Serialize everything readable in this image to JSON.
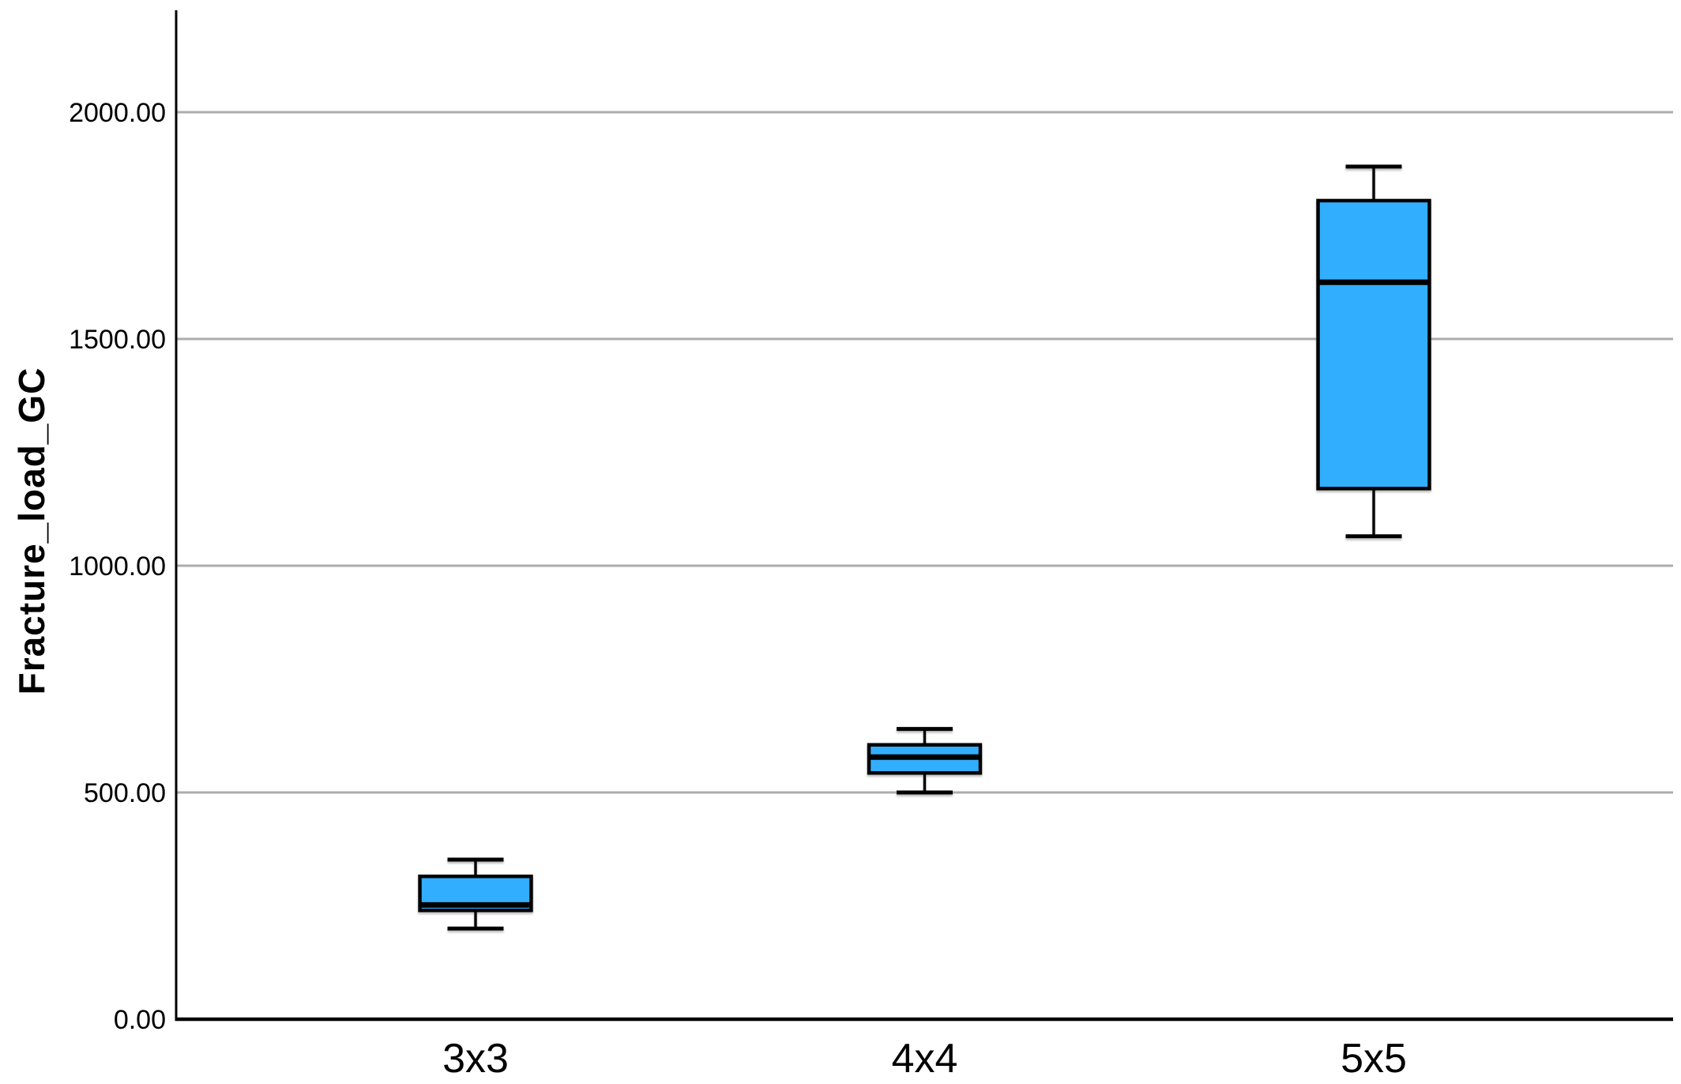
{
  "chart_data": {
    "type": "box",
    "title": "",
    "xlabel": "",
    "ylabel": "Fracture_load_GC",
    "categories": [
      "3x3",
      "4x4",
      "5x5"
    ],
    "series": [
      {
        "category": "3x3",
        "min": 200,
        "q1": 240,
        "median": 252,
        "q3": 315,
        "max": 352
      },
      {
        "category": "4x4",
        "min": 500,
        "q1": 543,
        "median": 578,
        "q3": 605,
        "max": 640
      },
      {
        "category": "5x5",
        "min": 1065,
        "q1": 1170,
        "median": 1625,
        "q3": 1805,
        "max": 1880
      }
    ],
    "ylim": [
      0,
      2225
    ],
    "yticks": [
      {
        "value": 0,
        "label": "0.00"
      },
      {
        "value": 500,
        "label": "500.00"
      },
      {
        "value": 1000,
        "label": "1000.00"
      },
      {
        "value": 1500,
        "label": "1500.00"
      },
      {
        "value": 2000,
        "label": "2000.00"
      }
    ],
    "grid": true,
    "legend": false,
    "colors": {
      "box_fill": "#30AEFF",
      "box_stroke": "#000000",
      "median": "#000000",
      "whisker": "#000000",
      "gridline": "#ACACAC",
      "axis": "#000000",
      "background": "#FFFFFF",
      "text": "#000000"
    }
  }
}
